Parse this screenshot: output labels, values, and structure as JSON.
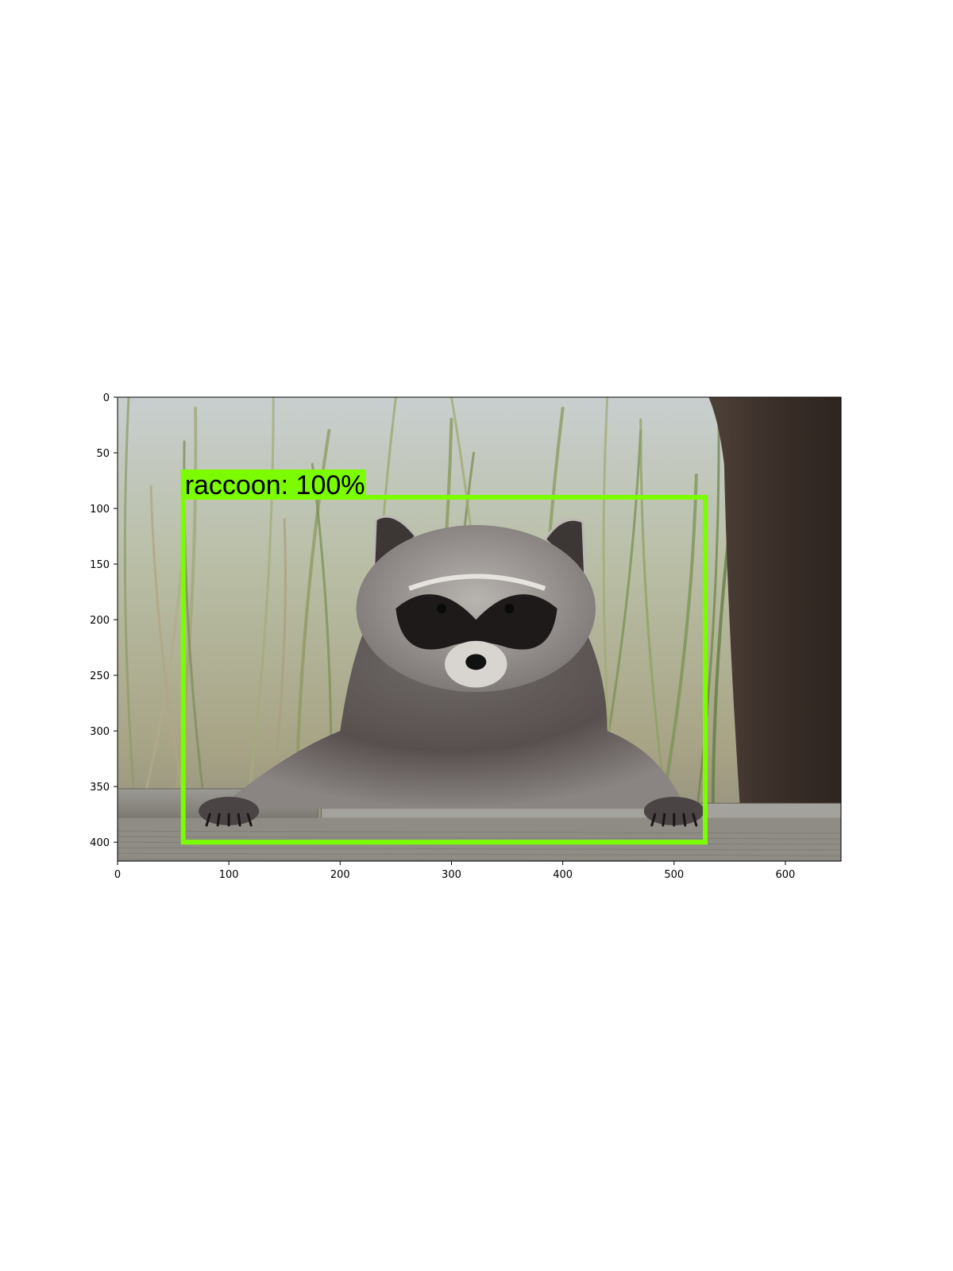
{
  "image": {
    "width": 650,
    "height": 417,
    "subject": "raccoon"
  },
  "axes": {
    "x_ticks": [
      0,
      100,
      200,
      300,
      400,
      500,
      600
    ],
    "y_ticks": [
      0,
      50,
      100,
      150,
      200,
      250,
      300,
      350,
      400
    ],
    "xlim": [
      0,
      650
    ],
    "ylim": [
      417,
      0
    ]
  },
  "detections": [
    {
      "label": "raccoon: 100%",
      "box": {
        "x_min": 59,
        "y_min": 90,
        "x_max": 528,
        "y_max": 400
      },
      "color": "#7cfc00"
    }
  ],
  "colors": {
    "box": "#7cfc00",
    "axes": "#000000"
  }
}
